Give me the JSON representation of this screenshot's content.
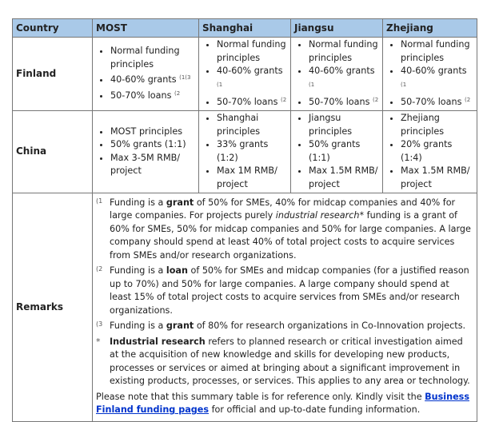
{
  "headers": [
    "Country",
    "MOST",
    "Shanghai",
    "Jiangsu",
    "Zhejiang"
  ],
  "rows": [
    {
      "country": "Finland",
      "cells": [
        [
          {
            "t": "Normal funding principles",
            "s": ""
          },
          {
            "t": "40-60% grants ",
            "s": "(1(3"
          },
          {
            "t": "50-70% loans ",
            "s": "(2"
          }
        ],
        [
          {
            "t": "Normal funding principles",
            "s": ""
          },
          {
            "t": "40-60% grants ",
            "s": "(1"
          },
          {
            "t": "50-70% loans ",
            "s": "(2"
          }
        ],
        [
          {
            "t": "Normal funding principles",
            "s": ""
          },
          {
            "t": "40-60% grants ",
            "s": "(1"
          },
          {
            "t": "50-70% loans ",
            "s": "(2"
          }
        ],
        [
          {
            "t": "Normal funding principles",
            "s": ""
          },
          {
            "t": "40-60% grants ",
            "s": "(1"
          },
          {
            "t": "50-70% loans ",
            "s": "(2"
          }
        ]
      ]
    },
    {
      "country": "China",
      "cells": [
        [
          {
            "t": "MOST principles",
            "s": ""
          },
          {
            "t": "50% grants (1:1)",
            "s": ""
          },
          {
            "t": "Max 3-5M RMB/ project",
            "s": ""
          }
        ],
        [
          {
            "t": "Shanghai principles",
            "s": ""
          },
          {
            "t": "33% grants (1:2)",
            "s": ""
          },
          {
            "t": "Max 1M RMB/ project",
            "s": ""
          }
        ],
        [
          {
            "t": "Jiangsu principles",
            "s": ""
          },
          {
            "t": "50% grants (1:1)",
            "s": ""
          },
          {
            "t": "Max 1.5M RMB/ project",
            "s": ""
          }
        ],
        [
          {
            "t": "Zhejiang principles",
            "s": ""
          },
          {
            "t": "20% grants (1:4)",
            "s": ""
          },
          {
            "t": "Max 1.5M RMB/ project",
            "s": ""
          }
        ]
      ]
    }
  ],
  "remarks": {
    "label": "Remarks",
    "notes": [
      {
        "marker": "(1",
        "parts": [
          [
            "",
            "Funding is a "
          ],
          [
            "b",
            "grant"
          ],
          [
            "",
            "  of 50% for SMEs, 40% for midcap companies and 40% for large companies. For projects purely "
          ],
          [
            "i",
            "industrial research*"
          ],
          [
            "",
            " funding is a grant of 60% for SMEs, 50% for midcap companies and 50% for large companies. A large company should spend at least 40% of total project costs to acquire services from SMEs and/or research organizations."
          ]
        ]
      },
      {
        "marker": "(2",
        "parts": [
          [
            "",
            "Funding is a "
          ],
          [
            "b",
            "loan"
          ],
          [
            "",
            " of 50% for SMEs and midcap companies (for a justified reason up to 70%) and 50% for large companies. A large company should spend at least 15% of total project costs to acquire services from SMEs and/or research organizations."
          ]
        ]
      },
      {
        "marker": "(3",
        "parts": [
          [
            "",
            "Funding is a "
          ],
          [
            "b",
            "grant"
          ],
          [
            "",
            " of 80% for research organizations in Co-Innovation projects."
          ]
        ]
      },
      {
        "marker": "*",
        "parts": [
          [
            "b",
            "Industrial research"
          ],
          [
            "",
            " refers to planned research or critical investigation aimed at the acquisition of new knowledge and skills for developing new products, processes or services or aimed at bringing about a significant improvement in existing products, processes, or services. This applies to any area or technology."
          ]
        ]
      }
    ],
    "footer_before": "Please note that this summary table is for reference only. Kindly visit the ",
    "footer_link": "Business Finland funding pages",
    "footer_after": " for official and up-to-date funding information."
  },
  "colors": {
    "header_bg": "#a9c9e8",
    "link": "#0033cc"
  }
}
